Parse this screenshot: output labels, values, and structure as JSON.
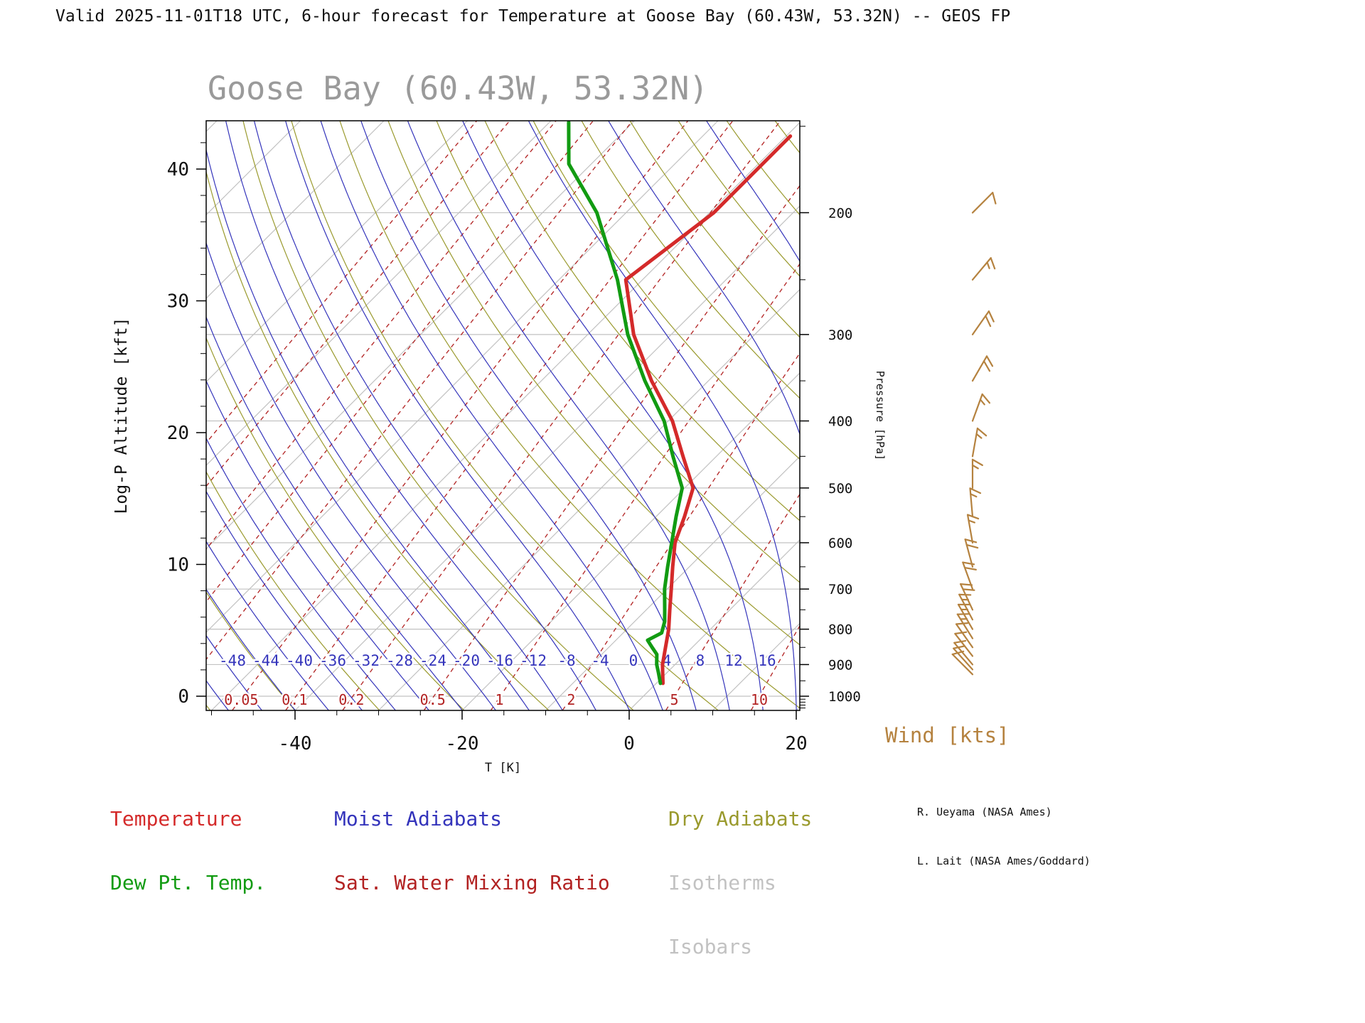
{
  "header": {
    "title": "Valid 2025-11-01T18 UTC, 6-hour forecast for Temperature at Goose Bay (60.43W, 53.32N) -- GEOS FP"
  },
  "chart": {
    "title": "Goose Bay (60.43W, 53.32N)",
    "title_color": "#9a9a9a"
  },
  "legend": {
    "items": [
      {
        "id": "temperature",
        "label": "Temperature",
        "color": "#d42a2a"
      },
      {
        "id": "dewpoint",
        "label": "Dew Pt. Temp.",
        "color": "#129b12"
      },
      {
        "id": "moist-adiabats",
        "label": "Moist Adiabats",
        "color": "#3434bb"
      },
      {
        "id": "mixing-ratio",
        "label": "Sat. Water Mixing Ratio",
        "color": "#b22222"
      },
      {
        "id": "dry-adiabats",
        "label": "Dry Adiabats",
        "color": "#9a9a2e"
      },
      {
        "id": "isotherms",
        "label": "Isotherms",
        "color": "#c2c2c2"
      },
      {
        "id": "isobars",
        "label": "Isobars",
        "color": "#c2c2c2"
      }
    ]
  },
  "wind": {
    "label": "Wind [kts]",
    "color": "#b5823f"
  },
  "credits": {
    "line1": "R. Ueyama (NASA Ames)",
    "line2": "L. Lait (NASA Ames/Goddard)"
  },
  "chart_data": {
    "type": "line",
    "title": "Goose Bay (60.43W, 53.32N)",
    "x_axis": {
      "label": "T [K]",
      "ticks": [
        -40,
        -20,
        0,
        20
      ],
      "bottom_range_C": [
        -50.6,
        20.4
      ]
    },
    "y_axis_left": {
      "label": "Log-P Altitude [kft]",
      "ticks": [
        0,
        10,
        20,
        30,
        40
      ],
      "range_kft": [
        -1.1,
        43.7
      ]
    },
    "y_axis_right": {
      "label": "Pressure [hPa]",
      "ticks": [
        200,
        300,
        400,
        500,
        600,
        700,
        800,
        900,
        1000
      ]
    },
    "moist_adiabat_labels_C": [
      -48,
      -44,
      -40,
      -36,
      -32,
      -28,
      -24,
      -20,
      -16,
      -12,
      -8,
      -4,
      0,
      4,
      8,
      12,
      16
    ],
    "mixing_ratio_labels_gkg": [
      0.05,
      0.1,
      0.2,
      0.5,
      1,
      2,
      5,
      10
    ],
    "grid": {
      "isobars_hPa": [
        200,
        300,
        400,
        500,
        600,
        700,
        800,
        900,
        1000
      ],
      "isotherms_C": {
        "min": -120,
        "max": 40,
        "step": 10
      },
      "dry_adiabats_theta_K": {
        "min": 220,
        "max": 440,
        "step": 10
      },
      "moist_adiabats_C": {
        "min": -48,
        "max": 32,
        "step": 4
      },
      "mixing_ratio_gkg": [
        0.001,
        0.002,
        0.005,
        0.01,
        0.02,
        0.05,
        0.1,
        0.2,
        0.5,
        1,
        2,
        5,
        10,
        20
      ]
    },
    "series": [
      {
        "name": "Temperature",
        "color": "#d42a2a",
        "pressure_hPa": [
          958,
          925,
          900,
          850,
          800,
          750,
          700,
          650,
          600,
          550,
          500,
          450,
          400,
          350,
          300,
          250,
          200,
          155
        ],
        "value_C": [
          0.8,
          -0.5,
          -1.5,
          -3.2,
          -5.0,
          -7.2,
          -9.5,
          -12.0,
          -14.6,
          -16.6,
          -19.0,
          -24.0,
          -29.5,
          -36.8,
          -44.5,
          -52.0,
          -49.5,
          -49.5
        ]
      },
      {
        "name": "Dew Pt. Temp.",
        "color": "#129b12",
        "pressure_hPa": [
          958,
          925,
          900,
          870,
          850,
          830,
          810,
          780,
          750,
          700,
          650,
          600,
          550,
          500,
          450,
          400,
          350,
          300,
          250,
          200,
          170,
          148
        ],
        "value_C": [
          0.5,
          -1.0,
          -2.2,
          -3.4,
          -4.8,
          -6.2,
          -5.4,
          -6.4,
          -7.8,
          -10.3,
          -12.6,
          -15.0,
          -17.6,
          -20.3,
          -25.2,
          -30.5,
          -37.6,
          -45.2,
          -53.0,
          -63.5,
          -72.7,
          -77.7
        ]
      }
    ],
    "wind_barbs": [
      {
        "p_hPa": 200,
        "dir_deg": 45,
        "speed_kts": 10
      },
      {
        "p_hPa": 250,
        "dir_deg": 40,
        "speed_kts": 15
      },
      {
        "p_hPa": 300,
        "dir_deg": 35,
        "speed_kts": 20
      },
      {
        "p_hPa": 350,
        "dir_deg": 30,
        "speed_kts": 20
      },
      {
        "p_hPa": 400,
        "dir_deg": 20,
        "speed_kts": 15
      },
      {
        "p_hPa": 450,
        "dir_deg": 10,
        "speed_kts": 15
      },
      {
        "p_hPa": 500,
        "dir_deg": 0,
        "speed_kts": 15
      },
      {
        "p_hPa": 550,
        "dir_deg": 355,
        "speed_kts": 15
      },
      {
        "p_hPa": 600,
        "dir_deg": 350,
        "speed_kts": 15
      },
      {
        "p_hPa": 650,
        "dir_deg": 345,
        "speed_kts": 20
      },
      {
        "p_hPa": 700,
        "dir_deg": 340,
        "speed_kts": 20
      },
      {
        "p_hPa": 750,
        "dir_deg": 335,
        "speed_kts": 20
      },
      {
        "p_hPa": 775,
        "dir_deg": 332,
        "speed_kts": 15
      },
      {
        "p_hPa": 800,
        "dir_deg": 330,
        "speed_kts": 15
      },
      {
        "p_hPa": 825,
        "dir_deg": 328,
        "speed_kts": 15
      },
      {
        "p_hPa": 850,
        "dir_deg": 325,
        "speed_kts": 12
      },
      {
        "p_hPa": 875,
        "dir_deg": 322,
        "speed_kts": 12
      },
      {
        "p_hPa": 900,
        "dir_deg": 320,
        "speed_kts": 10
      },
      {
        "p_hPa": 915,
        "dir_deg": 318,
        "speed_kts": 10
      },
      {
        "p_hPa": 930,
        "dir_deg": 315,
        "speed_kts": 10
      }
    ]
  }
}
